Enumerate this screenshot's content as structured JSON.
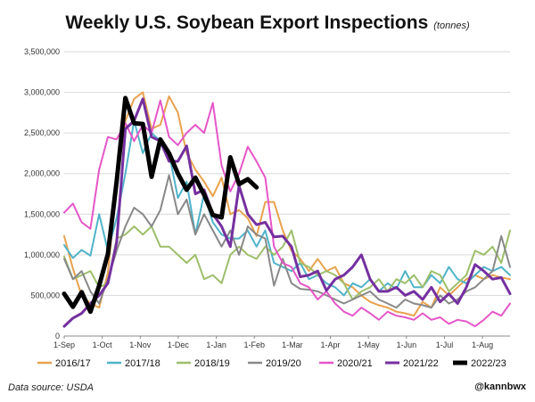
{
  "header": {
    "title": "Weekly U.S. Soybean Export Inspections",
    "subtitle": "(tonnes)"
  },
  "footer": {
    "source": "Data source: USDA",
    "credit": "@kannbwx"
  },
  "chart_data": {
    "type": "line",
    "title": "Weekly U.S. Soybean Export Inspections",
    "subtitle": "(tonnes)",
    "xlabel": "",
    "ylabel": "",
    "x_ticks": [
      "1-Sep",
      "1-Oct",
      "1-Nov",
      "1-Dec",
      "1-Jan",
      "1-Feb",
      "1-Mar",
      "1-Apr",
      "1-May",
      "1-Jun",
      "1-Jul",
      "1-Aug"
    ],
    "y_ticks": [
      "0",
      "500,000",
      "1,000,000",
      "1,500,000",
      "2,000,000",
      "2,500,000",
      "3,000,000",
      "3,500,000"
    ],
    "ylim": [
      0,
      3500000
    ],
    "weeks": 52,
    "grid": "horizontal",
    "legend_position": "bottom",
    "series": [
      {
        "name": "2016/17",
        "color": "#E8A24E",
        "width": 2,
        "values": [
          1230000,
          830000,
          500000,
          400000,
          350000,
          780000,
          1850000,
          2650000,
          2920000,
          3000000,
          2550000,
          2600000,
          2950000,
          2750000,
          2250000,
          2050000,
          1900000,
          1720000,
          1950000,
          1500000,
          1550000,
          1450000,
          1230000,
          1650000,
          1650000,
          1300000,
          1050000,
          950000,
          800000,
          950000,
          800000,
          850000,
          650000,
          600000,
          500000,
          420000,
          380000,
          350000,
          300000,
          280000,
          250000,
          420000,
          350000,
          600000,
          500000,
          600000,
          700000,
          750000,
          700000,
          750000,
          720000,
          700000
        ]
      },
      {
        "name": "2017/18",
        "color": "#4FB3C9",
        "width": 2,
        "values": [
          1120000,
          960000,
          1060000,
          990000,
          1500000,
          1050000,
          1450000,
          2000000,
          2650000,
          2250000,
          2500000,
          2400000,
          2250000,
          1700000,
          1900000,
          1250000,
          1750000,
          1400000,
          1250000,
          1200000,
          1200000,
          1300000,
          1100000,
          1300000,
          900000,
          850000,
          800000,
          900000,
          700000,
          750000,
          650000,
          600000,
          500000,
          650000,
          600000,
          700000,
          550000,
          650000,
          580000,
          800000,
          600000,
          600000,
          750000,
          650000,
          850000,
          700000,
          650000,
          750000,
          850000,
          800000,
          850000,
          750000
        ]
      },
      {
        "name": "2018/19",
        "color": "#9DBE6A",
        "width": 2,
        "values": [
          980000,
          700000,
          750000,
          800000,
          600000,
          650000,
          1200000,
          1250000,
          1350000,
          1250000,
          1350000,
          1100000,
          1100000,
          1000000,
          900000,
          1000000,
          700000,
          750000,
          650000,
          1000000,
          1100000,
          1000000,
          950000,
          1100000,
          1000000,
          1100000,
          1300000,
          900000,
          850000,
          750000,
          800000,
          750000,
          650000,
          450000,
          550000,
          600000,
          700000,
          550000,
          700000,
          650000,
          750000,
          600000,
          800000,
          750000,
          550000,
          650000,
          750000,
          1050000,
          1000000,
          1100000,
          900000,
          1300000
        ]
      },
      {
        "name": "2019/20",
        "color": "#888888",
        "width": 2,
        "values": [
          950000,
          700000,
          800000,
          550000,
          400000,
          700000,
          1050000,
          1350000,
          1580000,
          1500000,
          1350000,
          1550000,
          1980000,
          1500000,
          1680000,
          1250000,
          1500000,
          1300000,
          1100000,
          1300000,
          1000000,
          1350000,
          1250000,
          1200000,
          620000,
          950000,
          650000,
          580000,
          570000,
          550000,
          500000,
          450000,
          400000,
          450000,
          500000,
          550000,
          450000,
          400000,
          350000,
          450000,
          400000,
          380000,
          350000,
          500000,
          400000,
          450000,
          550000,
          600000,
          700000,
          800000,
          1230000,
          850000
        ]
      },
      {
        "name": "2020/21",
        "color": "#E556C8",
        "width": 2,
        "values": [
          1520000,
          1630000,
          1400000,
          1320000,
          2050000,
          2450000,
          2420000,
          2620000,
          2400000,
          2600000,
          2500000,
          2900000,
          2450000,
          2350000,
          2500000,
          2600000,
          2500000,
          2870000,
          2100000,
          1780000,
          2000000,
          2330000,
          2150000,
          1950000,
          1100000,
          900000,
          850000,
          650000,
          600000,
          450000,
          550000,
          400000,
          300000,
          250000,
          350000,
          280000,
          200000,
          300000,
          250000,
          230000,
          200000,
          280000,
          200000,
          230000,
          150000,
          200000,
          180000,
          120000,
          200000,
          300000,
          250000,
          400000
        ]
      },
      {
        "name": "2021/22",
        "color": "#7530A0",
        "width": 3,
        "values": [
          120000,
          220000,
          280000,
          400000,
          500000,
          650000,
          1150000,
          2550000,
          2650000,
          2920000,
          2450000,
          2400000,
          2150000,
          2150000,
          2340000,
          1750000,
          1800000,
          1500000,
          1350000,
          1100000,
          1850000,
          1500000,
          1370000,
          1400000,
          1220000,
          1230000,
          1100000,
          730000,
          750000,
          800000,
          560000,
          700000,
          750000,
          850000,
          1000000,
          700000,
          550000,
          550000,
          600000,
          500000,
          550000,
          450000,
          600000,
          420000,
          520000,
          400000,
          600000,
          880000,
          800000,
          700000,
          720000,
          520000
        ]
      },
      {
        "name": "2022/23",
        "color": "#000000",
        "width": 5,
        "values": [
          520000,
          360000,
          540000,
          300000,
          620000,
          1010000,
          1900000,
          2930000,
          2620000,
          2610000,
          1960000,
          2420000,
          2250000,
          2000000,
          1800000,
          1950000,
          1740000,
          1490000,
          1460000,
          2200000,
          1870000,
          1930000,
          1830000
        ]
      }
    ]
  }
}
